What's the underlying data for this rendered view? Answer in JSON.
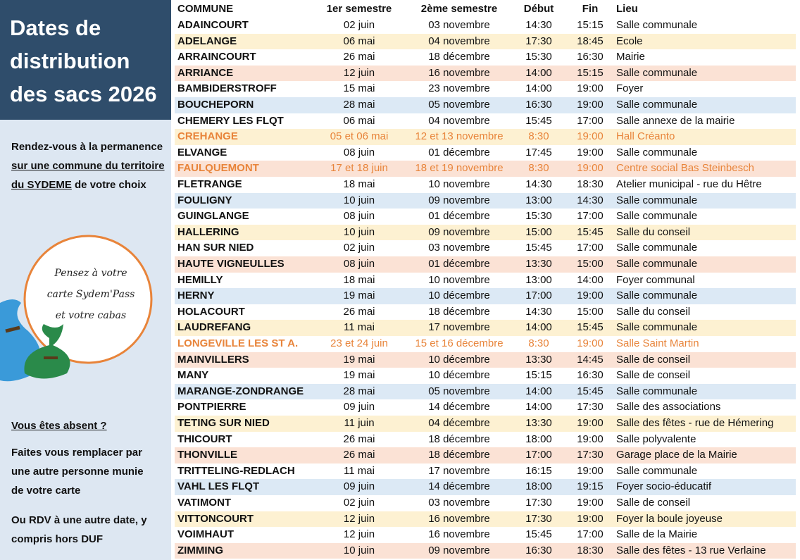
{
  "sidebar": {
    "title": [
      "Dates de",
      "distribution",
      "des sacs 2026"
    ],
    "intro": {
      "before": "Rendez-vous à la permanence",
      "underlined": "sur une commune du territoire du SYDEME",
      "after": "de votre choix"
    },
    "bubble": [
      "Pensez à votre",
      "carte Sydem'Pass",
      "et votre cabas"
    ],
    "absent_heading": "Vous êtes absent ?",
    "absent_text": "Faites vous remplacer par une autre personne munie de votre carte",
    "other_date": "Ou RDV à une autre date, y compris hors DUF"
  },
  "table": {
    "header": [
      "COMMUNE",
      "1er semestre",
      "2ème semestre",
      "Début",
      "Fin",
      "Lieu"
    ],
    "rows": [
      [
        "ADAINCOURT",
        "02 juin",
        "03 novembre",
        "14:30",
        "15:15",
        "Salle communale"
      ],
      [
        "ADELANGE",
        "06 mai",
        "04 novembre",
        "17:30",
        "18:45",
        "Ecole"
      ],
      [
        "ARRAINCOURT",
        "26 mai",
        "18 décembre",
        "15:30",
        "16:30",
        "Mairie"
      ],
      [
        "ARRIANCE",
        "12 juin",
        "16 novembre",
        "14:00",
        "15:15",
        "Salle communale"
      ],
      [
        "BAMBIDERSTROFF",
        "15 mai",
        "23 novembre",
        "14:00",
        "19:00",
        "Foyer"
      ],
      [
        "BOUCHEPORN",
        "28 mai",
        "05 novembre",
        "16:30",
        "19:00",
        "Salle communale"
      ],
      [
        "CHEMERY LES FLQT",
        "06 mai",
        "04 novembre",
        "15:45",
        "17:00",
        "Salle annexe de la mairie"
      ],
      [
        "CREHANGE",
        "05 et 06 mai",
        "12 et 13 novembre",
        "8:30",
        "19:00",
        "Hall Créanto"
      ],
      [
        "ELVANGE",
        "08 juin",
        "01 décembre",
        "17:45",
        "19:00",
        "Salle communale"
      ],
      [
        "FAULQUEMONT",
        "17 et 18 juin",
        "18 et 19 novembre",
        "8:30",
        "19:00",
        "Centre social Bas Steinbesch"
      ],
      [
        "FLETRANGE",
        "18 mai",
        "10 novembre",
        "14:30",
        "18:30",
        "Atelier municipal - rue du Hêtre"
      ],
      [
        "FOULIGNY",
        "10 juin",
        "09 novembre",
        "13:00",
        "14:30",
        "Salle communale"
      ],
      [
        "GUINGLANGE",
        "08 juin",
        "01 décembre",
        "15:30",
        "17:00",
        "Salle communale"
      ],
      [
        "HALLERING",
        "10 juin",
        "09 novembre",
        "15:00",
        "15:45",
        "Salle du conseil"
      ],
      [
        "HAN SUR NIED",
        "02 juin",
        "03 novembre",
        "15:45",
        "17:00",
        "Salle communale"
      ],
      [
        "HAUTE VIGNEULLES",
        "08 juin",
        "01 décembre",
        "13:30",
        "15:00",
        "Salle communale"
      ],
      [
        "HEMILLY",
        "18 mai",
        "10 novembre",
        "13:00",
        "14:00",
        "Foyer communal"
      ],
      [
        "HERNY",
        "19 mai",
        "10 décembre",
        "17:00",
        "19:00",
        "Salle communale"
      ],
      [
        "HOLACOURT",
        "26 mai",
        "18 décembre",
        "14:30",
        "15:00",
        "Salle du conseil"
      ],
      [
        "LAUDREFANG",
        "11 mai",
        "17 novembre",
        "14:00",
        "15:45",
        "Salle communale"
      ],
      [
        "LONGEVILLE LES ST A.",
        "23 et 24 juin",
        "15 et 16 décembre",
        "8:30",
        "19:00",
        "Salle Saint Martin"
      ],
      [
        "MAINVILLERS",
        "19 mai",
        "10 décembre",
        "13:30",
        "14:45",
        "Salle de conseil"
      ],
      [
        "MANY",
        "19 mai",
        "10 décembre",
        "15:15",
        "16:30",
        "Salle de conseil"
      ],
      [
        "MARANGE-ZONDRANGE",
        "28 mai",
        "05 novembre",
        "14:00",
        "15:45",
        "Salle communale"
      ],
      [
        "PONTPIERRE",
        "09 juin",
        "14 décembre",
        "14:00",
        "17:30",
        "Salle des associations"
      ],
      [
        "TETING SUR NIED",
        "11 juin",
        "04 décembre",
        "13:30",
        "19:00",
        "Salle des fêtes - rue de Hémering"
      ],
      [
        "THICOURT",
        "26 mai",
        "18 décembre",
        "18:00",
        "19:00",
        "Salle polyvalente"
      ],
      [
        "THONVILLE",
        "26 mai",
        "18 décembre",
        "17:00",
        "17:30",
        "Garage place de la Mairie"
      ],
      [
        "TRITTELING-REDLACH",
        "11 mai",
        "17 novembre",
        "16:15",
        "19:00",
        "Salle communale"
      ],
      [
        "VAHL LES FLQT",
        "09 juin",
        "14 décembre",
        "18:00",
        "19:15",
        "Foyer socio-éducatif"
      ],
      [
        "VATIMONT",
        "02 juin",
        "03 novembre",
        "17:30",
        "19:00",
        "Salle de conseil"
      ],
      [
        "VITTONCOURT",
        "12 juin",
        "16 novembre",
        "17:30",
        "19:00",
        "Foyer la boule joyeuse"
      ],
      [
        "VOIMHAUT",
        "12 juin",
        "16 novembre",
        "15:45",
        "17:00",
        "Salle de la Mairie"
      ],
      [
        "ZIMMING",
        "10 juin",
        "09 novembre",
        "16:30",
        "18:30",
        "Salle des fêtes - 13 rue Verlaine"
      ]
    ]
  }
}
